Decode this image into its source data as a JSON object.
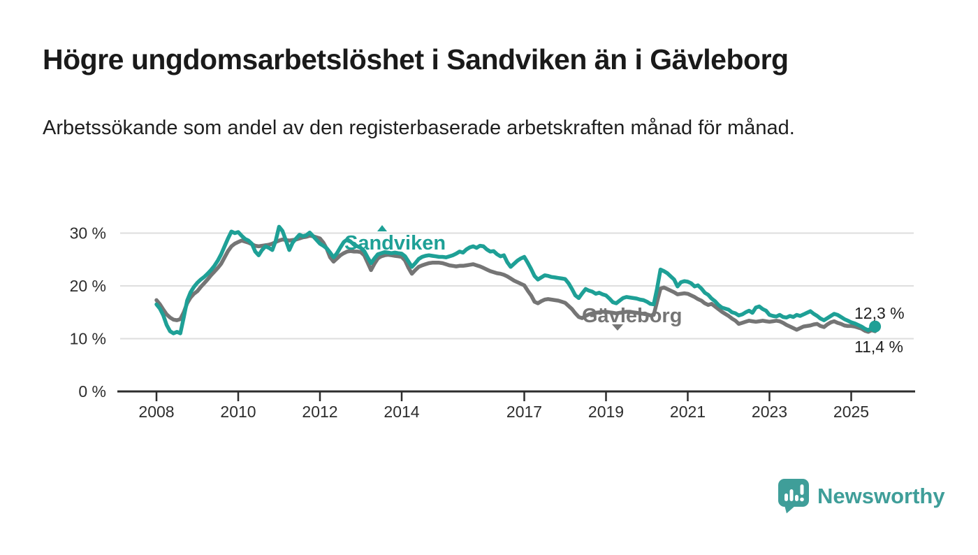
{
  "header": {
    "title": "Högre ungdomsarbetslöshet i Sandviken än i Gävleborg",
    "subtitle": "Arbetssökande som andel av den registerbaserade arbetskraften månad för månad."
  },
  "branding": {
    "logo_text": "Newsworthy",
    "logo_color": "#3f9e99"
  },
  "colors": {
    "sandviken": "#1ea096",
    "gavleborg": "#757575",
    "grid": "#dedede",
    "axis": "#2d2d2d",
    "text": "#1f1f1f"
  },
  "chart_data": {
    "type": "line",
    "title": "Högre ungdomsarbetslöshet i Sandviken än i Gävleborg",
    "subtitle": "Arbetssökande som andel av den registerbaserade arbetskraften månad för månad.",
    "x_start": "2008-01",
    "x_step": "1 month",
    "x_end": "2025-08",
    "ylim": [
      0,
      32
    ],
    "grid": true,
    "legend_position": "inline-labels",
    "y_ticks": [
      {
        "value": 30,
        "label": "30 %"
      },
      {
        "value": 20,
        "label": "20 %"
      },
      {
        "value": 10,
        "label": "10 %"
      },
      {
        "value": 0,
        "label": "0 %"
      }
    ],
    "x_ticks": [
      {
        "year": 2008,
        "label": "2008"
      },
      {
        "year": 2010,
        "label": "2010"
      },
      {
        "year": 2012,
        "label": "2012"
      },
      {
        "year": 2014,
        "label": "2014"
      },
      {
        "year": 2017,
        "label": "2017"
      },
      {
        "year": 2019,
        "label": "2019"
      },
      {
        "year": 2021,
        "label": "2021"
      },
      {
        "year": 2023,
        "label": "2023"
      },
      {
        "year": 2025,
        "label": "2025"
      }
    ],
    "series": [
      {
        "name": "Sandviken",
        "color": "#1ea096",
        "end_label": "12,3 %",
        "end_value": 12.3,
        "values": [
          16.5,
          15.7,
          14.4,
          12.6,
          11.4,
          11.0,
          11.3,
          11.0,
          14.0,
          17.2,
          18.8,
          19.8,
          20.6,
          21.2,
          21.7,
          22.3,
          23.0,
          23.8,
          24.8,
          26.0,
          27.5,
          29.0,
          30.3,
          30.0,
          30.2,
          29.5,
          28.9,
          28.6,
          28.0,
          26.5,
          25.8,
          26.8,
          27.5,
          27.2,
          26.8,
          28.5,
          31.2,
          30.4,
          28.6,
          26.8,
          28.2,
          29.0,
          29.7,
          29.4,
          29.6,
          30.1,
          29.4,
          28.7,
          28.0,
          27.6,
          27.1,
          26.3,
          25.4,
          26.2,
          27.3,
          28.3,
          28.8,
          28.4,
          27.8,
          27.5,
          27.2,
          26.6,
          25.4,
          24.3,
          25.2,
          26.0,
          26.2,
          26.4,
          26.3,
          26.2,
          26.3,
          26.2,
          26.1,
          25.6,
          24.6,
          23.6,
          24.3,
          25.1,
          25.5,
          25.7,
          25.8,
          25.7,
          25.6,
          25.5,
          25.5,
          25.4,
          25.6,
          25.8,
          26.1,
          26.5,
          26.3,
          26.9,
          27.3,
          27.5,
          27.2,
          27.6,
          27.5,
          26.9,
          26.5,
          26.6,
          26.0,
          25.6,
          25.8,
          24.5,
          23.6,
          24.2,
          24.8,
          25.2,
          25.5,
          24.4,
          23.2,
          21.9,
          21.2,
          21.6,
          22.0,
          21.9,
          21.7,
          21.6,
          21.5,
          21.4,
          21.3,
          20.5,
          19.4,
          18.2,
          17.7,
          18.6,
          19.4,
          19.1,
          18.9,
          18.5,
          18.7,
          18.4,
          18.2,
          17.6,
          16.9,
          16.7,
          17.2,
          17.7,
          17.9,
          17.8,
          17.7,
          17.6,
          17.4,
          17.3,
          17.0,
          16.6,
          16.5,
          19.5,
          23.1,
          22.8,
          22.4,
          21.8,
          21.2,
          19.9,
          20.7,
          20.9,
          20.8,
          20.5,
          19.9,
          20.1,
          19.5,
          18.7,
          18.3,
          17.6,
          17.1,
          16.4,
          15.9,
          15.7,
          15.5,
          15.0,
          14.8,
          14.4,
          14.6,
          15.0,
          15.3,
          14.9,
          15.9,
          16.1,
          15.6,
          15.3,
          14.5,
          14.3,
          14.2,
          14.5,
          14.1,
          14.0,
          14.3,
          14.1,
          14.5,
          14.3,
          14.6,
          14.9,
          15.2,
          14.7,
          14.3,
          13.8,
          13.5,
          13.9,
          14.3,
          14.7,
          14.5,
          14.1,
          13.7,
          13.4,
          13.1,
          12.9,
          12.6,
          12.3,
          11.9,
          11.6,
          12.0,
          12.3
        ]
      },
      {
        "name": "Gävleborg",
        "color": "#757575",
        "end_label": "11,4 %",
        "end_value": 11.4,
        "values": [
          17.3,
          16.5,
          15.5,
          14.6,
          14.0,
          13.6,
          13.5,
          13.7,
          15.0,
          16.7,
          17.8,
          18.5,
          19.0,
          19.8,
          20.5,
          21.2,
          22.0,
          22.7,
          23.4,
          24.2,
          25.4,
          26.6,
          27.5,
          28.0,
          28.3,
          28.6,
          28.4,
          28.2,
          27.9,
          27.6,
          27.5,
          27.6,
          27.7,
          27.8,
          28.0,
          28.3,
          28.6,
          28.8,
          28.7,
          28.6,
          28.7,
          28.8,
          29.0,
          29.2,
          29.3,
          29.5,
          29.4,
          29.2,
          29.0,
          28.2,
          27.0,
          25.4,
          24.6,
          25.2,
          25.8,
          26.2,
          26.5,
          26.6,
          26.5,
          26.5,
          26.4,
          25.8,
          24.4,
          23.0,
          24.2,
          25.2,
          25.6,
          25.8,
          25.9,
          25.8,
          25.7,
          25.6,
          25.5,
          24.8,
          23.4,
          22.3,
          23.0,
          23.6,
          23.9,
          24.1,
          24.3,
          24.4,
          24.4,
          24.4,
          24.3,
          24.1,
          23.9,
          23.8,
          23.7,
          23.8,
          23.8,
          23.9,
          24.0,
          24.1,
          23.9,
          23.7,
          23.4,
          23.1,
          22.8,
          22.6,
          22.4,
          22.3,
          22.1,
          21.8,
          21.4,
          21.0,
          20.7,
          20.4,
          20.1,
          19.1,
          18.2,
          17.0,
          16.7,
          17.1,
          17.4,
          17.5,
          17.4,
          17.3,
          17.2,
          17.0,
          16.8,
          16.2,
          15.6,
          14.8,
          14.1,
          13.9,
          14.3,
          14.6,
          14.8,
          14.9,
          15.0,
          15.1,
          15.1,
          15.0,
          14.9,
          14.8,
          14.9,
          15.0,
          15.1,
          15.1,
          15.0,
          14.9,
          14.8,
          14.7,
          14.6,
          14.4,
          14.5,
          17.0,
          19.5,
          19.7,
          19.4,
          19.1,
          18.8,
          18.4,
          18.5,
          18.6,
          18.5,
          18.2,
          17.9,
          17.5,
          17.2,
          16.7,
          16.4,
          16.6,
          16.1,
          15.6,
          15.1,
          14.7,
          14.3,
          13.8,
          13.4,
          12.8,
          13.0,
          13.2,
          13.4,
          13.3,
          13.2,
          13.3,
          13.4,
          13.3,
          13.2,
          13.3,
          13.4,
          13.3,
          13.0,
          12.6,
          12.3,
          12.0,
          11.7,
          12.0,
          12.3,
          12.4,
          12.5,
          12.7,
          12.8,
          12.4,
          12.2,
          12.7,
          13.1,
          13.3,
          13.0,
          12.8,
          12.5,
          12.4,
          12.4,
          12.3,
          12.1,
          11.9,
          11.5,
          11.3,
          11.6,
          11.4
        ]
      }
    ]
  }
}
